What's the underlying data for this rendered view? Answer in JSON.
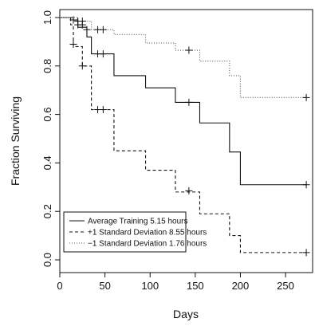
{
  "chart_data": {
    "type": "line",
    "step": true,
    "xlabel": "Days",
    "ylabel": "Fraction Surviving",
    "xlim": [
      0,
      280
    ],
    "ylim": [
      0,
      1.0
    ],
    "x_ticks": [
      0,
      50,
      100,
      150,
      200,
      250
    ],
    "y_ticks": [
      0.0,
      0.2,
      0.4,
      0.6,
      0.8,
      1.0
    ],
    "x_tick_labels": [
      "0",
      "50",
      "100",
      "150",
      "200",
      "250"
    ],
    "y_tick_labels": [
      "0.0",
      "0.2",
      "0.4",
      "0.6",
      "0.8",
      "1.0"
    ],
    "grid": false,
    "legend_position": "bottom-left",
    "legend": [
      "Average Training 5.15 hours",
      "+1 Standard Deviation 8.55 hours",
      "−1 Standard Deviation 1.76 hours"
    ],
    "series": [
      {
        "name": "Average Training 5.15 hours",
        "line_style": "solid",
        "steps": [
          [
            0,
            1.0
          ],
          [
            15,
            0.99
          ],
          [
            20,
            0.96
          ],
          [
            30,
            0.92
          ],
          [
            35,
            0.85
          ],
          [
            60,
            0.76
          ],
          [
            95,
            0.71
          ],
          [
            128,
            0.65
          ],
          [
            155,
            0.565
          ],
          [
            188,
            0.445
          ],
          [
            200,
            0.31
          ],
          [
            273,
            0.31
          ]
        ],
        "censored": [
          [
            15,
            0.99
          ],
          [
            20,
            0.97
          ],
          [
            25,
            0.97
          ],
          [
            30,
            0.95
          ],
          [
            42,
            0.95
          ],
          [
            48,
            0.95
          ],
          [
            42,
            0.85
          ],
          [
            48,
            0.85
          ],
          [
            143,
            0.65
          ],
          [
            273,
            0.31
          ]
        ]
      },
      {
        "name": "+1 Standard Deviation 8.55 hours",
        "line_style": "dashed",
        "steps": [
          [
            0,
            1.0
          ],
          [
            12,
            0.97
          ],
          [
            15,
            0.88
          ],
          [
            25,
            0.8
          ],
          [
            35,
            0.62
          ],
          [
            60,
            0.45
          ],
          [
            95,
            0.37
          ],
          [
            128,
            0.28
          ],
          [
            155,
            0.19
          ],
          [
            188,
            0.1
          ],
          [
            200,
            0.03
          ],
          [
            273,
            0.03
          ]
        ],
        "censored": [
          [
            15,
            0.89
          ],
          [
            25,
            0.8
          ],
          [
            42,
            0.62
          ],
          [
            48,
            0.62
          ],
          [
            143,
            0.285
          ],
          [
            273,
            0.03
          ]
        ]
      },
      {
        "name": "−1 Standard Deviation 1.76 hours",
        "line_style": "dotted",
        "steps": [
          [
            0,
            1.0
          ],
          [
            20,
            0.985
          ],
          [
            35,
            0.95
          ],
          [
            60,
            0.93
          ],
          [
            95,
            0.895
          ],
          [
            128,
            0.865
          ],
          [
            155,
            0.82
          ],
          [
            188,
            0.76
          ],
          [
            200,
            0.67
          ],
          [
            273,
            0.67
          ]
        ],
        "censored": [
          [
            15,
            0.99
          ],
          [
            20,
            0.985
          ],
          [
            25,
            0.985
          ],
          [
            143,
            0.865
          ],
          [
            273,
            0.67
          ]
        ]
      }
    ]
  }
}
